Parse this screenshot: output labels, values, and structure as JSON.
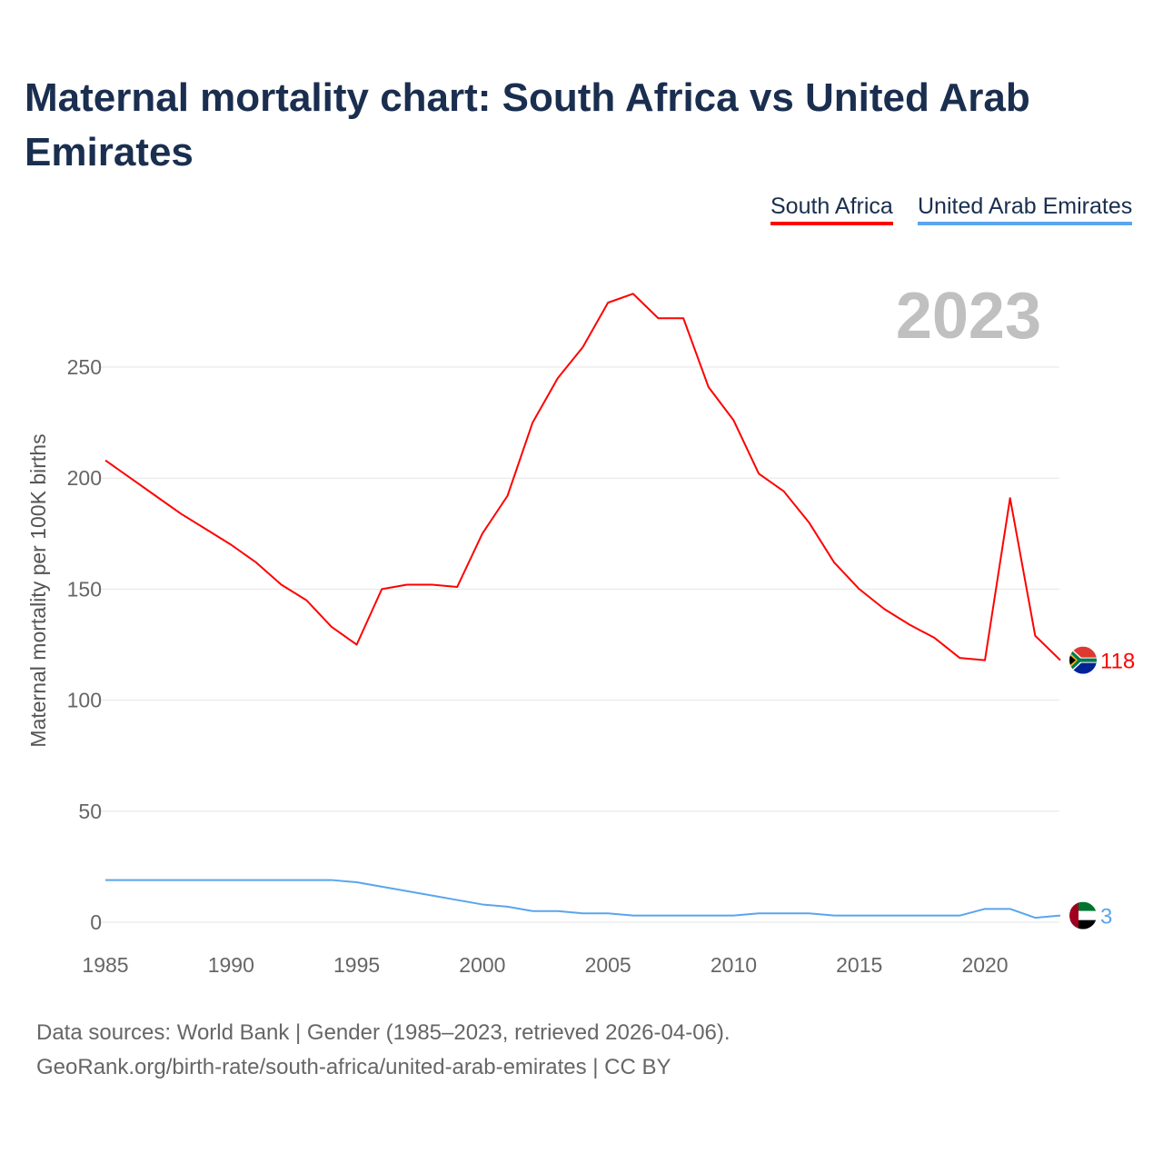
{
  "title": "Maternal mortality chart: South Africa vs United Arab Emirates",
  "footer": {
    "line1": "Data sources: World Bank | Gender (1985–2023, retrieved 2026-04-06).",
    "line2": "GeoRank.org/birth-rate/south-africa/united-arab-emirates | CC BY"
  },
  "chart_data": {
    "type": "line",
    "title": "Maternal mortality chart: South Africa vs United Arab Emirates",
    "ylabel": "Maternal mortality per 100K births",
    "xlabel": "",
    "year_label": "2023",
    "xlim": [
      1985,
      2023
    ],
    "ylim": [
      0,
      290
    ],
    "xticks": [
      1985,
      1990,
      1995,
      2000,
      2005,
      2010,
      2015,
      2020
    ],
    "yticks": [
      0,
      50,
      100,
      150,
      200,
      250
    ],
    "grid": true,
    "legend": "top-right",
    "x": [
      1985,
      1986,
      1987,
      1988,
      1989,
      1990,
      1991,
      1992,
      1993,
      1994,
      1995,
      1996,
      1997,
      1998,
      1999,
      2000,
      2001,
      2002,
      2003,
      2004,
      2005,
      2006,
      2007,
      2008,
      2009,
      2010,
      2011,
      2012,
      2013,
      2014,
      2015,
      2016,
      2017,
      2018,
      2019,
      2020,
      2021,
      2022,
      2023
    ],
    "series": [
      {
        "name": "South Africa",
        "color": "#ff0000",
        "end_label": "118",
        "values": [
          208,
          200,
          192,
          184,
          177,
          170,
          162,
          152,
          145,
          133,
          125,
          150,
          152,
          152,
          151,
          175,
          192,
          225,
          245,
          259,
          279,
          283,
          272,
          272,
          241,
          226,
          202,
          194,
          180,
          162,
          150,
          141,
          134,
          128,
          119,
          118,
          191,
          129,
          118
        ]
      },
      {
        "name": "United Arab Emirates",
        "color": "#5aa5ee",
        "end_label": "3",
        "values": [
          19,
          19,
          19,
          19,
          19,
          19,
          19,
          19,
          19,
          19,
          18,
          16,
          14,
          12,
          10,
          8,
          7,
          5,
          5,
          4,
          4,
          3,
          3,
          3,
          3,
          3,
          4,
          4,
          4,
          3,
          3,
          3,
          3,
          3,
          3,
          6,
          6,
          2,
          3
        ]
      }
    ]
  }
}
